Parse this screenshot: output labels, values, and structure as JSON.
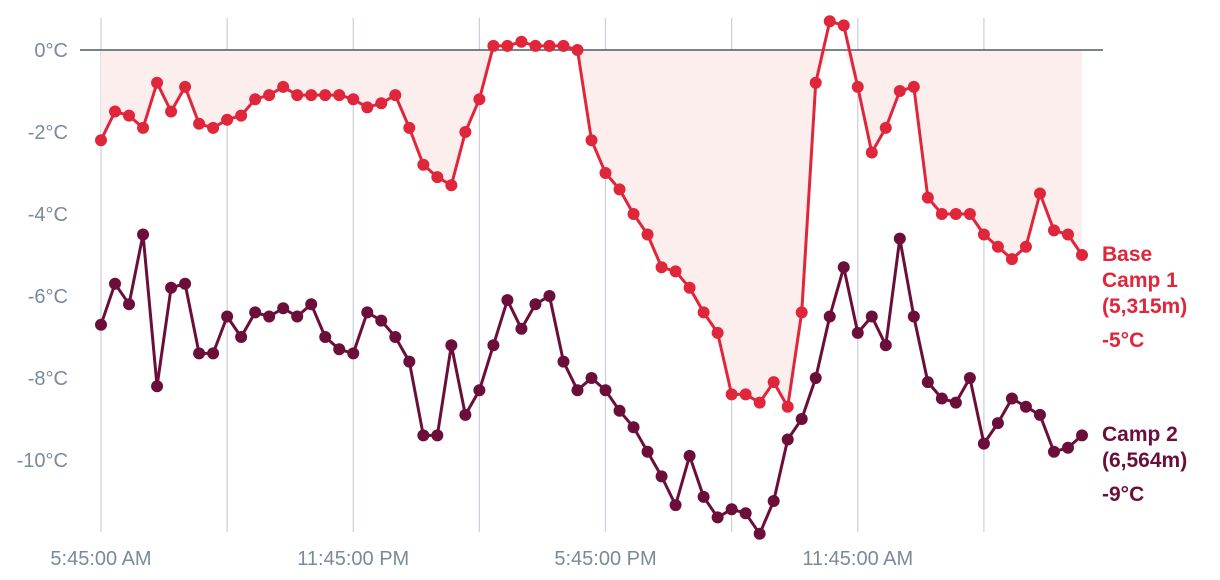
{
  "colors": {
    "base_camp": "#e0263a",
    "camp2": "#6b0f3a",
    "fill": "#fdeeee",
    "grid": "#c9d0da",
    "zero_line": "#4a5a6a",
    "tick_text": "#7a8a9c"
  },
  "chart_data": {
    "type": "line",
    "ylim": [
      -11.8,
      0.8
    ],
    "y_ticks": [
      0,
      -2,
      -4,
      -6,
      -8,
      -10
    ],
    "y_tick_labels": [
      "0°C",
      "-2°C",
      "-4°C",
      "-6°C",
      "-8°C",
      "-10°C"
    ],
    "x_range": [
      0,
      35.8
    ],
    "x_gridlines": [
      0,
      4.5,
      9,
      13.5,
      18,
      22.5,
      27,
      31.5
    ],
    "x_tick_positions": [
      0,
      9,
      18,
      27
    ],
    "x_tick_labels": [
      "5:45:00 AM",
      "11:45:00 PM",
      "5:45:00 PM",
      "11:45:00 AM"
    ],
    "zero_line": true,
    "series": [
      {
        "key": "base_camp",
        "label_lines": [
          "Base",
          "Camp 1",
          "(5,315m)"
        ],
        "last_value_label": "-5°C",
        "fill_to_zero": true,
        "x": [
          0,
          0.5,
          1,
          1.5,
          2,
          2.5,
          3,
          3.5,
          4,
          4.5,
          5,
          5.5,
          6,
          6.5,
          7,
          7.5,
          8,
          8.5,
          9,
          9.5,
          10,
          10.5,
          11,
          11.5,
          12,
          12.5,
          13,
          13.5,
          14,
          14.5,
          15,
          15.5,
          16,
          16.5,
          17,
          17.5,
          18,
          18.5,
          19,
          19.5,
          20,
          20.5,
          21,
          21.5,
          22,
          22.5,
          23,
          23.5,
          24,
          24.5,
          25,
          25.5,
          26,
          26.5,
          27,
          27.5,
          28,
          28.5,
          29,
          29.5,
          30,
          30.5,
          31,
          31.5,
          32,
          32.5,
          33,
          33.5,
          34,
          34.5,
          35
        ],
        "values": [
          -2.2,
          -1.5,
          -1.6,
          -1.9,
          -0.8,
          -1.5,
          -0.9,
          -1.8,
          -1.9,
          -1.7,
          -1.6,
          -1.2,
          -1.1,
          -0.9,
          -1.1,
          -1.1,
          -1.1,
          -1.1,
          -1.2,
          -1.4,
          -1.3,
          -1.1,
          -1.9,
          -2.8,
          -3.1,
          -3.3,
          -2.0,
          -1.2,
          0.1,
          0.1,
          0.2,
          0.1,
          0.1,
          0.1,
          0.0,
          -2.2,
          -3.0,
          -3.4,
          -4.0,
          -4.5,
          -5.3,
          -5.4,
          -5.8,
          -6.4,
          -6.9,
          -8.4,
          -8.4,
          -8.6,
          -8.1,
          -8.7,
          -6.4,
          -0.8,
          0.7,
          0.6,
          -0.9,
          -2.5,
          -1.9,
          -1.0,
          -0.9,
          -3.6,
          -4.0,
          -4.0,
          -4.0,
          -4.5,
          -4.8,
          -5.1,
          -4.8,
          -3.5,
          -4.4,
          -4.5,
          -5.0
        ]
      },
      {
        "key": "camp2",
        "label_lines": [
          "Camp 2",
          "(6,564m)"
        ],
        "last_value_label": "-9°C",
        "fill_to_zero": false,
        "x": [
          0,
          0.5,
          1,
          1.5,
          2,
          2.5,
          3,
          3.5,
          4,
          4.5,
          5,
          5.5,
          6,
          6.5,
          7,
          7.5,
          8,
          8.5,
          9,
          9.5,
          10,
          10.5,
          11,
          11.5,
          12,
          12.5,
          13,
          13.5,
          14,
          14.5,
          15,
          15.5,
          16,
          16.5,
          17,
          17.5,
          18,
          18.5,
          19,
          19.5,
          20,
          20.5,
          21,
          21.5,
          22,
          22.5,
          23,
          23.5,
          24,
          24.5,
          25,
          25.5,
          26,
          26.5,
          27,
          27.5,
          28,
          28.5,
          29,
          29.5,
          30,
          30.5,
          31,
          31.5,
          32,
          32.5,
          33,
          33.5,
          34,
          34.5,
          35
        ],
        "values": [
          -6.7,
          -5.7,
          -6.2,
          -4.5,
          -8.2,
          -5.8,
          -5.7,
          -7.4,
          -7.4,
          -6.5,
          -7.0,
          -6.4,
          -6.5,
          -6.3,
          -6.5,
          -6.2,
          -7.0,
          -7.3,
          -7.4,
          -6.4,
          -6.6,
          -7.0,
          -7.6,
          -9.4,
          -9.4,
          -7.2,
          -8.9,
          -8.3,
          -7.2,
          -6.1,
          -6.8,
          -6.2,
          -6.0,
          -7.6,
          -8.3,
          -8.0,
          -8.3,
          -8.8,
          -9.2,
          -9.8,
          -10.4,
          -11.1,
          -9.9,
          -10.9,
          -11.4,
          -11.2,
          -11.3,
          -11.8,
          -11.0,
          -9.5,
          -9.0,
          -8.0,
          -6.5,
          -5.3,
          -6.9,
          -6.5,
          -7.2,
          -4.6,
          -6.5,
          -8.1,
          -8.5,
          -8.6,
          -8.0,
          -9.6,
          -9.1,
          -8.5,
          -8.7,
          -8.9,
          -9.8,
          -9.7,
          -9.4
        ]
      }
    ]
  }
}
